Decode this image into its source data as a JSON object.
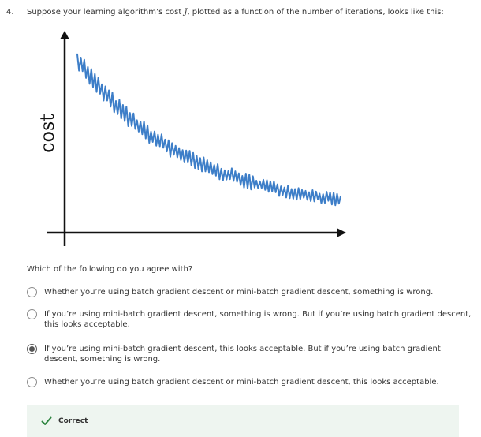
{
  "question": {
    "number": "4.",
    "text_before": "Suppose your learning algorithm’s cost ",
    "math_symbol": "J",
    "text_after": ", plotted as a function of the number of iterations, looks like this:"
  },
  "figure": {
    "ylabel": "cost",
    "line_color": "#3d7ec8",
    "axis_color": "#111111"
  },
  "prompt": "Which of the following do you agree with?",
  "options": [
    {
      "label": "Whether you’re using batch gradient descent or mini-batch gradient descent, something is wrong.",
      "selected": false
    },
    {
      "label": "If you’re using mini-batch gradient descent, something is wrong. But if you’re using batch gradient descent, this looks acceptable.",
      "selected": false
    },
    {
      "label": "If you’re using mini-batch gradient descent, this looks acceptable. But if you’re using batch gradient descent, something is wrong.",
      "selected": true
    },
    {
      "label": "Whether you’re using batch gradient descent or mini-batch gradient descent, this looks acceptable.",
      "selected": false
    }
  ],
  "feedback": {
    "label": "Correct",
    "icon": "check-icon",
    "color": "#2e8540"
  }
}
